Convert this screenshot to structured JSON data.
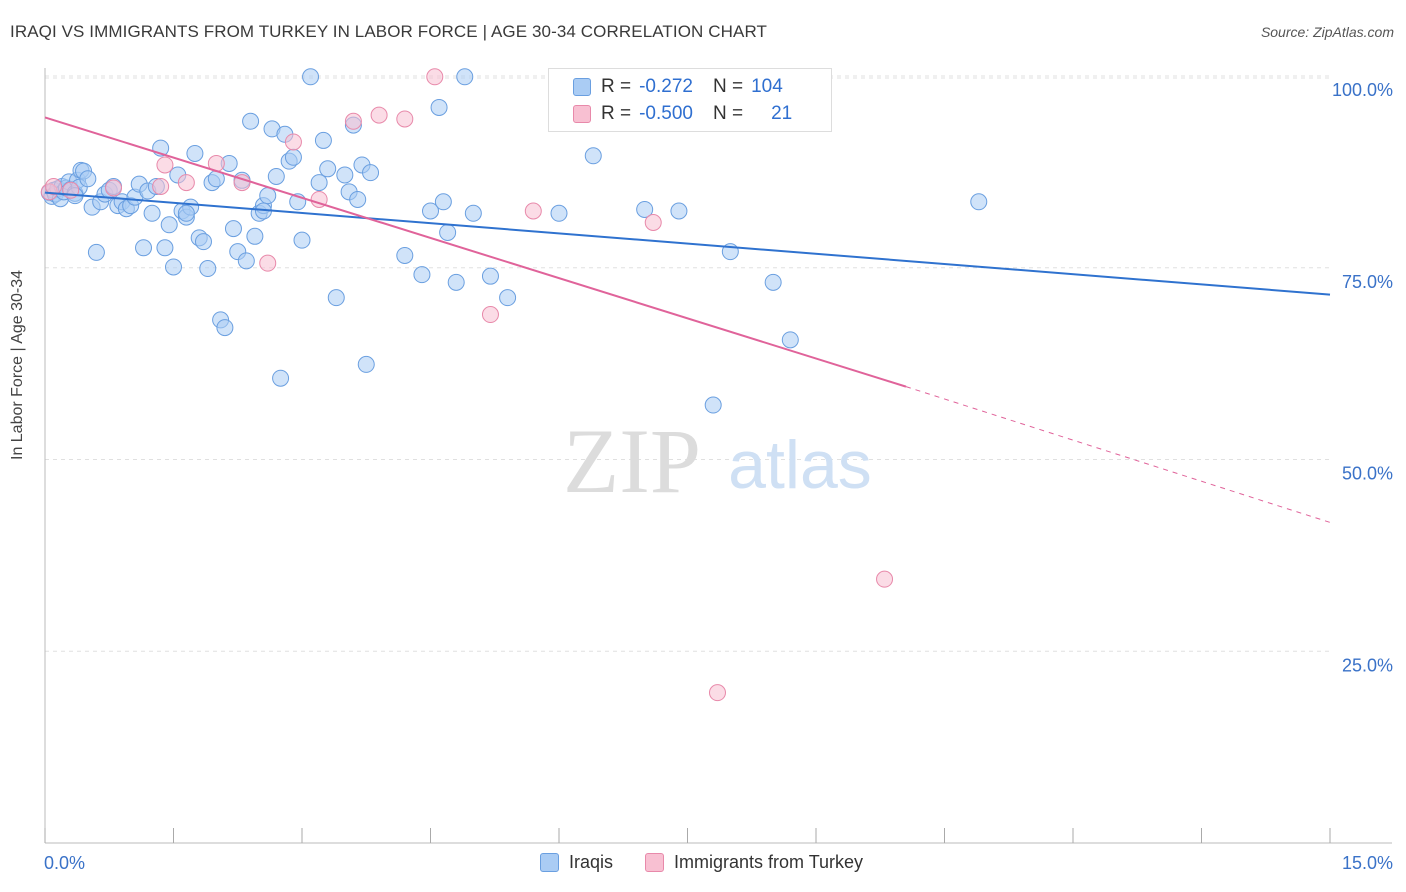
{
  "title": "IRAQI VS IMMIGRANTS FROM TURKEY IN LABOR FORCE | AGE 30-34 CORRELATION CHART",
  "source": "Source: ZipAtlas.com",
  "watermark": {
    "zip": "ZIP",
    "atlas": "atlas"
  },
  "colors": {
    "blue_fill": "#aaccf4",
    "blue_stroke": "#6a9fe0",
    "blue_line": "#2f72cf",
    "pink_fill": "#f8c0d2",
    "pink_stroke": "#e889aa",
    "pink_line": "#e0639a",
    "axis_text": "#3a72c8",
    "grid": "#e0e0e0"
  },
  "legend": {
    "rows": [
      {
        "r_label": "R =",
        "r_value": "-0.272",
        "n_label": "N =",
        "n_value": "104"
      },
      {
        "r_label": "R =",
        "r_value": "-0.500",
        "n_label": "N =",
        "n_value": "21"
      }
    ]
  },
  "bottom_legend": {
    "series1": "Iraqis",
    "series2": "Immigrants from Turkey"
  },
  "chart_data": {
    "type": "scatter",
    "title": "IRAQI VS IMMIGRANTS FROM TURKEY IN LABOR FORCE | AGE 30-34 CORRELATION CHART",
    "xlabel": "",
    "ylabel": "In Labor Force | Age 30-34",
    "xlim": [
      0,
      15
    ],
    "ylim": [
      0,
      100
    ],
    "x_tick_labels": [
      "0.0%",
      "15.0%"
    ],
    "y_tick_labels": [
      "100.0%",
      "75.0%",
      "50.0%",
      "25.0%"
    ],
    "y_ticks": [
      100,
      75,
      50,
      25
    ],
    "series": [
      {
        "name": "Iraqis",
        "r": -0.272,
        "n": 104,
        "trend": {
          "x": [
            0,
            15
          ],
          "y": [
            84.8,
            71.5
          ]
        },
        "points": [
          [
            0.05,
            84.8
          ],
          [
            0.08,
            84.3
          ],
          [
            0.1,
            85.1
          ],
          [
            0.12,
            84.6
          ],
          [
            0.15,
            85.3
          ],
          [
            0.18,
            84.0
          ],
          [
            0.2,
            85.6
          ],
          [
            0.22,
            84.9
          ],
          [
            0.25,
            85.4
          ],
          [
            0.28,
            86.2
          ],
          [
            0.3,
            85.2
          ],
          [
            0.35,
            84.7
          ],
          [
            0.38,
            86.4
          ],
          [
            0.4,
            85.5
          ],
          [
            0.42,
            87.7
          ],
          [
            0.45,
            87.6
          ],
          [
            0.5,
            86.6
          ],
          [
            0.55,
            82.9
          ],
          [
            0.6,
            77.0
          ],
          [
            0.65,
            83.6
          ],
          [
            0.7,
            84.6
          ],
          [
            0.75,
            85.1
          ],
          [
            0.8,
            85.6
          ],
          [
            0.85,
            83.1
          ],
          [
            0.9,
            83.6
          ],
          [
            0.95,
            82.7
          ],
          [
            1.0,
            83.1
          ],
          [
            1.05,
            84.2
          ],
          [
            1.1,
            85.9
          ],
          [
            1.15,
            77.6
          ],
          [
            1.2,
            85.0
          ],
          [
            1.25,
            82.1
          ],
          [
            1.3,
            85.6
          ],
          [
            1.35,
            90.6
          ],
          [
            1.4,
            77.6
          ],
          [
            1.45,
            80.6
          ],
          [
            1.5,
            75.1
          ],
          [
            1.55,
            87.1
          ],
          [
            1.6,
            82.4
          ],
          [
            1.65,
            81.6
          ],
          [
            1.7,
            82.9
          ],
          [
            1.75,
            89.9
          ],
          [
            1.8,
            78.9
          ],
          [
            1.85,
            78.4
          ],
          [
            1.9,
            74.9
          ],
          [
            1.95,
            86.1
          ],
          [
            2.0,
            86.6
          ],
          [
            2.05,
            68.2
          ],
          [
            2.1,
            67.2
          ],
          [
            2.15,
            88.6
          ],
          [
            2.2,
            80.1
          ],
          [
            2.25,
            77.1
          ],
          [
            2.3,
            86.4
          ],
          [
            2.35,
            75.9
          ],
          [
            2.4,
            94.1
          ],
          [
            2.45,
            79.1
          ],
          [
            2.5,
            82.1
          ],
          [
            2.55,
            83.1
          ],
          [
            2.6,
            84.4
          ],
          [
            2.65,
            93.1
          ],
          [
            2.7,
            86.9
          ],
          [
            2.75,
            60.6
          ],
          [
            2.8,
            92.4
          ],
          [
            2.85,
            88.9
          ],
          [
            2.9,
            89.4
          ],
          [
            2.95,
            83.6
          ],
          [
            3.0,
            78.6
          ],
          [
            3.1,
            99.9
          ],
          [
            3.2,
            86.1
          ],
          [
            3.25,
            91.6
          ],
          [
            3.3,
            87.9
          ],
          [
            3.4,
            71.1
          ],
          [
            3.5,
            87.1
          ],
          [
            3.55,
            84.9
          ],
          [
            3.6,
            93.6
          ],
          [
            3.65,
            83.9
          ],
          [
            3.7,
            88.4
          ],
          [
            3.75,
            62.4
          ],
          [
            3.8,
            87.4
          ],
          [
            4.2,
            76.6
          ],
          [
            4.4,
            74.1
          ],
          [
            4.5,
            82.4
          ],
          [
            4.6,
            95.9
          ],
          [
            4.65,
            83.6
          ],
          [
            4.7,
            79.6
          ],
          [
            4.8,
            73.1
          ],
          [
            4.9,
            99.9
          ],
          [
            5.0,
            82.1
          ],
          [
            5.2,
            73.9
          ],
          [
            5.4,
            71.1
          ],
          [
            6.0,
            82.1
          ],
          [
            6.4,
            89.6
          ],
          [
            7.0,
            82.6
          ],
          [
            7.4,
            82.4
          ],
          [
            7.8,
            57.1
          ],
          [
            8.0,
            77.1
          ],
          [
            8.5,
            73.1
          ],
          [
            8.7,
            65.6
          ],
          [
            10.9,
            83.6
          ],
          [
            0.35,
            84.4
          ],
          [
            1.65,
            82.1
          ],
          [
            2.55,
            82.4
          ]
        ]
      },
      {
        "name": "Immigrants from Turkey",
        "r": -0.5,
        "n": 21,
        "trend": {
          "x": [
            0,
            10.05
          ],
          "y": [
            94.6,
            59.5
          ]
        },
        "trend_dashed": {
          "x": [
            10.05,
            15
          ],
          "y": [
            59.5,
            41.8
          ]
        },
        "points": [
          [
            0.05,
            84.9
          ],
          [
            0.1,
            85.6
          ],
          [
            0.3,
            85.1
          ],
          [
            0.8,
            85.4
          ],
          [
            1.4,
            88.4
          ],
          [
            1.65,
            86.1
          ],
          [
            2.0,
            88.6
          ],
          [
            2.3,
            86.1
          ],
          [
            2.6,
            75.6
          ],
          [
            2.9,
            91.4
          ],
          [
            3.2,
            83.9
          ],
          [
            3.6,
            94.1
          ],
          [
            3.9,
            94.9
          ],
          [
            4.2,
            94.4
          ],
          [
            4.55,
            99.9
          ],
          [
            5.2,
            68.9
          ],
          [
            5.7,
            82.4
          ],
          [
            7.1,
            80.9
          ],
          [
            7.85,
            19.6
          ],
          [
            9.8,
            34.4
          ],
          [
            1.35,
            85.6
          ]
        ]
      }
    ],
    "grid": true,
    "legend_position": "top-center"
  }
}
